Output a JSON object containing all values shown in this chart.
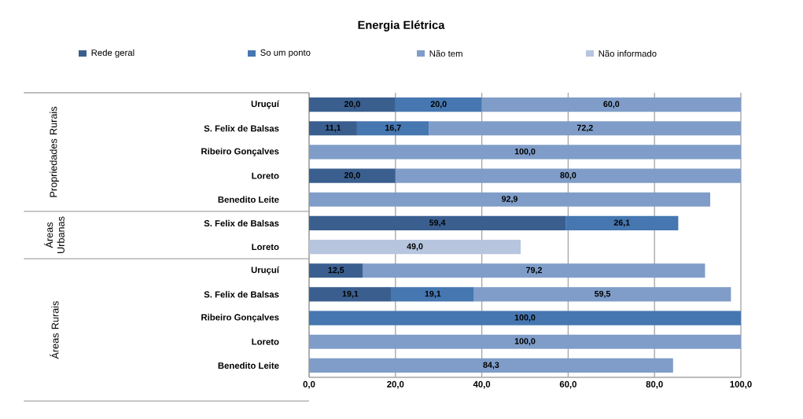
{
  "chart_data": {
    "type": "bar",
    "orientation": "horizontal",
    "stacked": true,
    "title": "Energia Elétrica",
    "categories": [
      "Uruçuí",
      "S. Felix de Balsas",
      "Ribeiro Gonçalves",
      "Loreto",
      "Benedito Leite",
      "S. Felix de Balsas",
      "Loreto",
      "Uruçuí",
      "S. Felix de Balsas",
      "Ribeiro Gonçalves",
      "Loreto",
      "Benedito Leite"
    ],
    "series": [
      {
        "name": "Rede geral",
        "color": "#3a5f8f",
        "values": [
          20.0,
          11.1,
          null,
          20.0,
          null,
          59.4,
          null,
          12.5,
          19.1,
          null,
          null,
          null
        ],
        "value_labels": [
          "20,0",
          "11,1",
          null,
          "20,0",
          null,
          "59,4",
          null,
          "12,5",
          "19,1",
          null,
          null,
          null
        ]
      },
      {
        "name": "So um ponto",
        "color": "#4677b0",
        "values": [
          20.0,
          16.7,
          null,
          null,
          null,
          26.1,
          null,
          null,
          19.1,
          100.0,
          null,
          null
        ],
        "value_labels": [
          "20,0",
          "16,7",
          null,
          null,
          null,
          "26,1",
          null,
          null,
          "19,1",
          "100,0",
          null,
          null
        ]
      },
      {
        "name": "Não tem",
        "color": "#7f9dc8",
        "values": [
          60.0,
          72.2,
          100.0,
          80.0,
          92.9,
          null,
          null,
          79.2,
          59.5,
          null,
          100.0,
          84.3
        ],
        "value_labels": [
          "60,0",
          "72,2",
          "100,0",
          "80,0",
          "92,9",
          null,
          null,
          "79,2",
          "59,5",
          null,
          "100,0",
          "84,3"
        ]
      },
      {
        "name": "Não informado",
        "color": "#b7c5df",
        "values": [
          null,
          null,
          null,
          null,
          null,
          null,
          49.0,
          null,
          null,
          null,
          null,
          null
        ],
        "value_labels": [
          null,
          null,
          null,
          null,
          null,
          null,
          "49,0",
          null,
          null,
          null,
          null,
          null
        ]
      }
    ],
    "xlim": [
      0,
      100
    ],
    "xticks": [
      {
        "value": 0,
        "label": "0,0"
      },
      {
        "value": 20,
        "label": "20,0"
      },
      {
        "value": 40,
        "label": "40,0"
      },
      {
        "value": 60,
        "label": "60,0"
      },
      {
        "value": 80,
        "label": "80,0"
      },
      {
        "value": 100,
        "label": "100,0"
      }
    ],
    "grid": "x",
    "legend": "top",
    "annotations": [
      "Propriedades Rurais",
      "Áreas Urbanas",
      "Áreas Rurais"
    ]
  }
}
